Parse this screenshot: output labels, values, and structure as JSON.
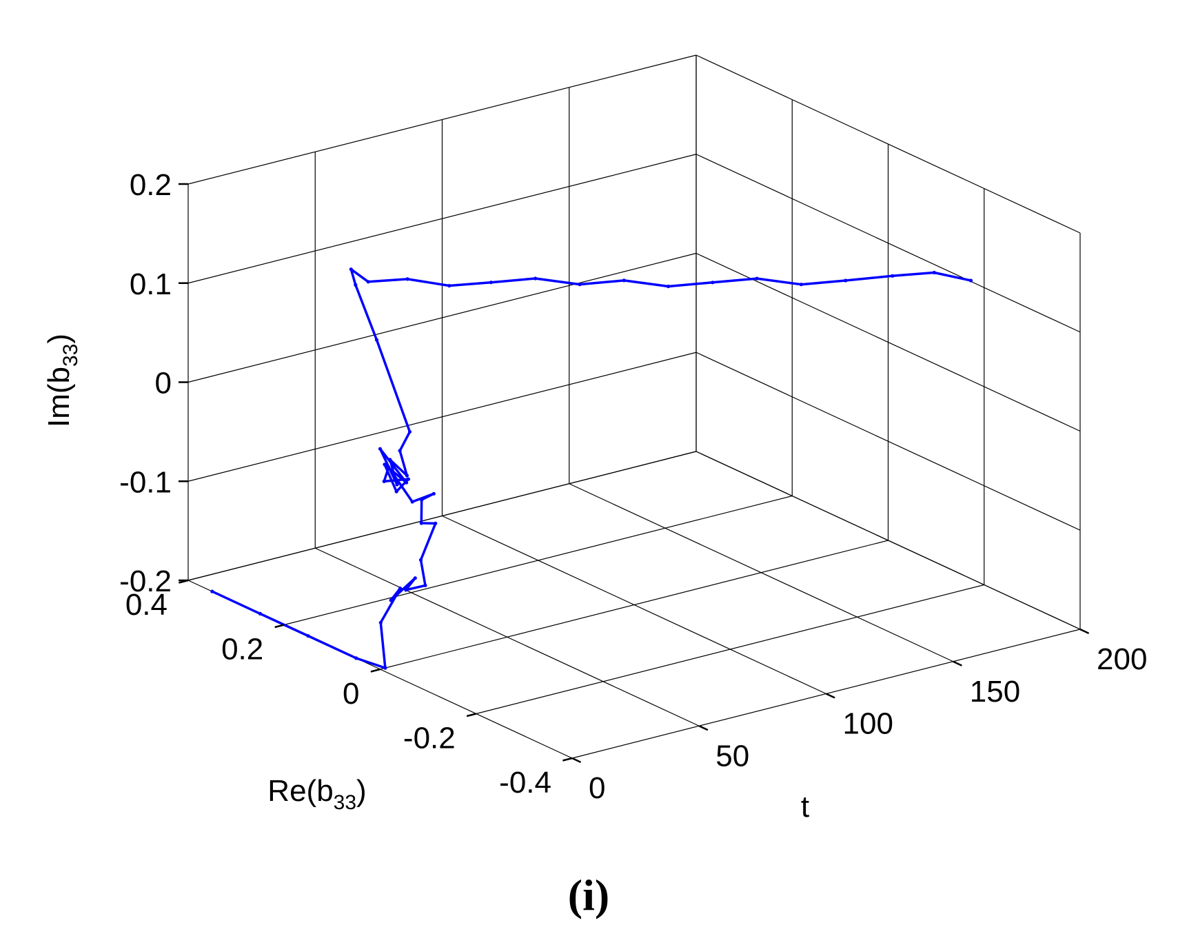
{
  "chart_data": {
    "type": "line3d",
    "panel_label": "(i)",
    "xlabel": {
      "pre": "Re(b",
      "sub": "33",
      "post": ")"
    },
    "ylabel": {
      "text": "t"
    },
    "zlabel": {
      "pre": "Im(b",
      "sub": "33",
      "post": ")"
    },
    "xlim": [
      -0.4,
      0.4
    ],
    "ylim": [
      0,
      200
    ],
    "zlim": [
      -0.2,
      0.2
    ],
    "x_ticks": [
      -0.4,
      -0.2,
      0,
      0.2,
      0.4
    ],
    "x_tick_labels": [
      "-0.4",
      "-0.2",
      "0",
      "0.2",
      "0.4"
    ],
    "y_ticks": [
      0,
      50,
      100,
      150,
      200
    ],
    "y_tick_labels": [
      "0",
      "50",
      "100",
      "150",
      "200"
    ],
    "z_ticks": [
      -0.2,
      -0.1,
      0,
      0.1,
      0.2
    ],
    "z_tick_labels": [
      "-0.2",
      "-0.1",
      "0",
      "0.1",
      "0.2"
    ],
    "grid": true,
    "line_color": "#0000ff",
    "series": [
      {
        "points": [
          [
            0.35,
            0,
            -0.2
          ],
          [
            0.25,
            0,
            -0.2
          ],
          [
            0.15,
            0,
            -0.2
          ],
          [
            0.05,
            0,
            -0.2
          ],
          [
            0.0,
            2,
            -0.2
          ],
          [
            0.02,
            4,
            -0.16
          ],
          [
            -0.01,
            6,
            -0.12
          ],
          [
            0.02,
            8,
            -0.14
          ],
          [
            -0.02,
            10,
            -0.11
          ],
          [
            0.01,
            12,
            -0.13
          ],
          [
            -0.02,
            14,
            -0.12
          ],
          [
            0.0,
            16,
            -0.1
          ],
          [
            -0.02,
            18,
            -0.06
          ],
          [
            0.02,
            20,
            -0.07
          ],
          [
            0.03,
            22,
            -0.05
          ],
          [
            0.01,
            23,
            -0.04
          ],
          [
            0.06,
            24,
            -0.06
          ],
          [
            0.12,
            26,
            -0.04
          ],
          [
            0.14,
            28,
            -0.06
          ],
          [
            0.1,
            30,
            -0.05
          ],
          [
            0.13,
            31,
            -0.07
          ],
          [
            0.16,
            32,
            -0.05
          ],
          [
            0.12,
            33,
            -0.06
          ],
          [
            0.18,
            34,
            -0.04
          ],
          [
            0.15,
            35,
            -0.07
          ],
          [
            0.17,
            36,
            -0.05
          ],
          [
            0.14,
            37,
            -0.06
          ],
          [
            0.16,
            38,
            -0.04
          ],
          [
            0.15,
            40,
            -0.02
          ],
          [
            0.24,
            44,
            0.05
          ],
          [
            0.3,
            47,
            0.09
          ],
          [
            0.32,
            49,
            0.1
          ],
          [
            0.3,
            52,
            0.09
          ],
          [
            0.25,
            58,
            0.1
          ],
          [
            0.2,
            65,
            0.1
          ],
          [
            0.15,
            72,
            0.11
          ],
          [
            0.1,
            80,
            0.12
          ],
          [
            0.05,
            88,
            0.12
          ],
          [
            0.0,
            96,
            0.13
          ],
          [
            -0.05,
            104,
            0.13
          ],
          [
            -0.1,
            112,
            0.14
          ],
          [
            -0.15,
            120,
            0.15
          ],
          [
            -0.2,
            128,
            0.15
          ],
          [
            -0.25,
            136,
            0.16
          ],
          [
            -0.3,
            145,
            0.17
          ],
          [
            -0.35,
            152,
            0.18
          ],
          [
            -0.4,
            157,
            0.18
          ]
        ]
      }
    ]
  }
}
